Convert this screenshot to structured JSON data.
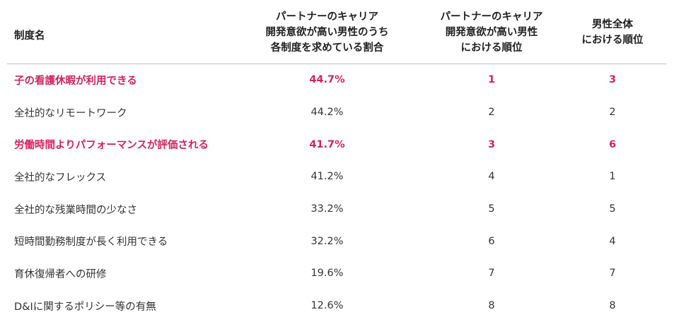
{
  "table": {
    "headers": {
      "name": "制度名",
      "pct": "パートナーのキャリア\n開発意欲が高い男性のうち\n各制度を求めている割合",
      "rank_partner": "パートナーのキャリア\n開発意欲が高い男性\nにおける順位",
      "rank_all": "男性全体\nにおける順位"
    },
    "rows": [
      {
        "name": "子の看護休暇が利用できる",
        "pct": "44.7%",
        "rank_partner": "1",
        "rank_all": "3",
        "highlight": true
      },
      {
        "name": "全社的なリモートワーク",
        "pct": "44.2%",
        "rank_partner": "2",
        "rank_all": "2",
        "highlight": false
      },
      {
        "name": "労働時間よりパフォーマンスが評価される",
        "pct": "41.7%",
        "rank_partner": "3",
        "rank_all": "6",
        "highlight": true
      },
      {
        "name": "全社的なフレックス",
        "pct": "41.2%",
        "rank_partner": "4",
        "rank_all": "1",
        "highlight": false
      },
      {
        "name": "全社的な残業時間の少なさ",
        "pct": "33.2%",
        "rank_partner": "5",
        "rank_all": "5",
        "highlight": false
      },
      {
        "name": "短時間勤務制度が長く利用できる",
        "pct": "32.2%",
        "rank_partner": "6",
        "rank_all": "4",
        "highlight": false
      },
      {
        "name": "育休復帰者への研修",
        "pct": "19.6%",
        "rank_partner": "7",
        "rank_all": "7",
        "highlight": false
      },
      {
        "name": "D&Iに関するポリシー等の有無",
        "pct": "12.6%",
        "rank_partner": "8",
        "rank_all": "8",
        "highlight": false
      }
    ]
  },
  "colors": {
    "highlight": "#d1245e",
    "text": "#333333",
    "rule": "#bdbdbd"
  }
}
